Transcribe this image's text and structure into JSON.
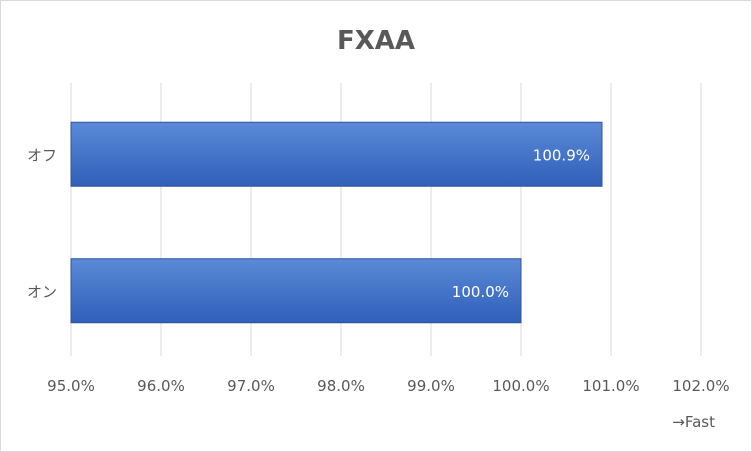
{
  "chart_data": {
    "type": "bar",
    "orientation": "horizontal",
    "title": "FXAA",
    "categories": [
      "オフ",
      "オン"
    ],
    "values": [
      100.9,
      100.0
    ],
    "data_labels": [
      "100.9%",
      "100.0%"
    ],
    "xlim": [
      95.0,
      102.0
    ],
    "x_ticks": [
      95.0,
      96.0,
      97.0,
      98.0,
      99.0,
      100.0,
      101.0,
      102.0
    ],
    "x_tick_labels": [
      "95.0%",
      "96.0%",
      "97.0%",
      "98.0%",
      "99.0%",
      "100.0%",
      "101.0%",
      "102.0%"
    ],
    "annotation": "→Fast",
    "grid": true,
    "legend": "none",
    "bar_color": "#4472c4"
  }
}
